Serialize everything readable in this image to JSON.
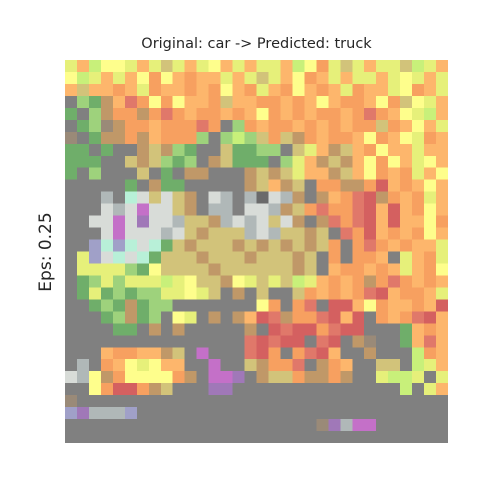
{
  "title": "Original: car -> Predicted: truck",
  "ylabel": "Eps: 0.25",
  "image": {
    "description_name": "adversarial-cifar-image",
    "grid_size": 32,
    "palette": {
      "g": "#808080",
      "y": "#fefe8c",
      "Y": "#e6f07a",
      "o": "#fdb66c",
      "O": "#f7a060",
      "l": "#c8f07a",
      "k": "#9ed27c",
      "K": "#6fae6a",
      "r": "#e0786a",
      "R": "#d46060",
      "m": "#c09868",
      "t": "#d2c37a",
      "p": "#c470c8",
      "P": "#a078b8",
      "w": "#d8dcd8",
      "s": "#b0b8b8",
      "c": "#b8f0d8",
      "b": "#a0a0c8",
      "n": "#9a8a78",
      "d": "#6a6a6a"
    },
    "rows": [
      "YolyyYoYtYoYyoYoYYolyOYtYoYYtlYo",
      "ylYoYoyOyoOooYoYtYoyOoYoYYoYyYoY",
      "otooOoYOooOoOyoOYoOyoOoYOooYyOoY",
      "gkKmorOyOyooOtooOOoOoyoOOoyOtyYo",
      "KgkmOOmOrOoOOoOoyOoOoOOoOrOoyYlo",
      "gKknmOOoOOOrOgkOoOOoOoOoOOtOoyoY",
      "ngKmmOmoOOOkgklktOtmOoOOoyOoyYOo",
      "KKgKggmtmkKggtKKkkgtYomtoOyooYoo",
      "KKKggtmtkKkgmtKKKgkYomtmoyOyoYyo",
      "KgkgggtgKgmmgggmtmtYoomtoyOoOYoy",
      "gggggKgmKKgggggmtomtgOOmmORoOoyo",
      "gggsgcwtwtmgwsgsdwsmgmoOrRmOoOYo",
      "gggwswpwwtmgssgwwsmtOrOOrRoRoOyo",
      "ggwwpwPwwsttmswswtwmgmrOrRoRooyO",
      "gggwpwwwswtmtttswsttmtgrORoOoOyo",
      "ggbcbcwcKtmtttmtmtmtmtOgOrOoOooY",
      "gYbwcwcKtttmtttmtttmtgOgOOogYoOY",
      "gYYYYkKyttttmttttttmtgoOOoOoYoOy",
      "gKkYkYYYlYyttmyYtYtlYoOoOmOrOoOo",
      "gKYKkKkkYYyYtgmgtggtOoOoOrRoOOoY",
      "ggKkKmKkkgggggggyOgOrgRRoyOooOoR",
      "gggKkmKkgyYgmgmoRrmOOrRoRgOoOrRo",
      "ggggKKgmgmgggggmgRrRROrRRgggKoOo",
      "gggggggggggggggrRrRRgrRgmnggKoro",
      "gggoOOoomtgpgggrROgOrRoggmgggyOo",
      "gsgOoyYyoOggPggtmOOrgmOoggttglKo",
      "gsYmOyyyoOmgpgggmttOmmOmggYllYgO",
      "ggmoOmOmtgggPggggggggggggggglgYo",
      "gggggggggggggggggggggggggggggggg",
      "gggggggggggggggggggggggggggggggg",
      "gggggggggggggggggggggggggggggggg",
      "gggggggggggggggggggggggggggggggg"
    ],
    "extra_marks": [
      {
        "row": 26,
        "col": 13,
        "color": "p"
      },
      {
        "row": 27,
        "col": 13,
        "color": "P"
      },
      {
        "row": 26,
        "col": 14,
        "color": "P"
      },
      {
        "row": 25,
        "col": 12,
        "color": "p"
      },
      {
        "row": 29,
        "col": 0,
        "color": "b"
      },
      {
        "row": 29,
        "col": 1,
        "color": "P"
      },
      {
        "row": 29,
        "col": 2,
        "color": "s"
      },
      {
        "row": 29,
        "col": 3,
        "color": "s"
      },
      {
        "row": 29,
        "col": 4,
        "color": "s"
      },
      {
        "row": 29,
        "col": 5,
        "color": "b"
      },
      {
        "row": 28,
        "col": 0,
        "color": "n"
      },
      {
        "row": 30,
        "col": 21,
        "color": "n"
      },
      {
        "row": 30,
        "col": 22,
        "color": "P"
      },
      {
        "row": 30,
        "col": 23,
        "color": "s"
      },
      {
        "row": 30,
        "col": 24,
        "color": "p"
      },
      {
        "row": 30,
        "col": 25,
        "color": "p"
      },
      {
        "row": 26,
        "col": 0,
        "color": "w"
      },
      {
        "row": 26,
        "col": 2,
        "color": "y"
      },
      {
        "row": 27,
        "col": 2,
        "color": "y"
      },
      {
        "row": 27,
        "col": 3,
        "color": "O"
      },
      {
        "row": 27,
        "col": 4,
        "color": "R"
      },
      {
        "row": 27,
        "col": 5,
        "color": "R"
      },
      {
        "row": 27,
        "col": 6,
        "color": "O"
      },
      {
        "row": 26,
        "col": 7,
        "color": "y"
      },
      {
        "row": 26,
        "col": 8,
        "color": "y"
      },
      {
        "row": 25,
        "col": 9,
        "color": "o"
      },
      {
        "row": 24,
        "col": 29,
        "color": "l"
      },
      {
        "row": 25,
        "col": 30,
        "color": "Y"
      },
      {
        "row": 26,
        "col": 31,
        "color": "Y"
      }
    ]
  }
}
